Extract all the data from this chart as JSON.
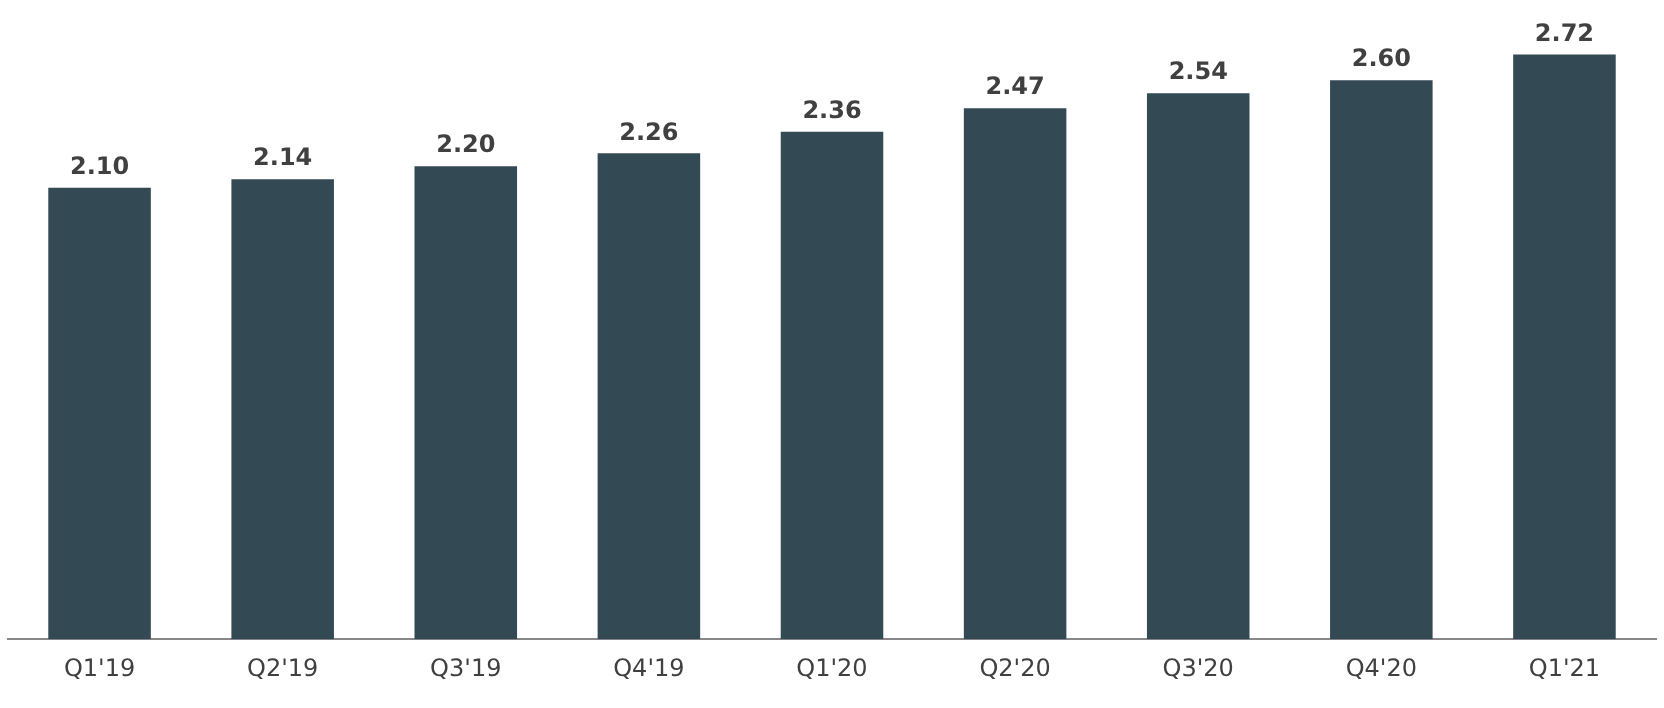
{
  "chart_data": {
    "type": "bar",
    "categories": [
      "Q1'19",
      "Q2'19",
      "Q3'19",
      "Q4'19",
      "Q1'20",
      "Q2'20",
      "Q3'20",
      "Q4'20",
      "Q1'21"
    ],
    "values": [
      2.1,
      2.14,
      2.2,
      2.26,
      2.36,
      2.47,
      2.54,
      2.6,
      2.72
    ],
    "value_labels": [
      "2.10",
      "2.14",
      "2.20",
      "2.26",
      "2.36",
      "2.47",
      "2.54",
      "2.60",
      "2.72"
    ],
    "color": "#334a55",
    "ylim": [
      0,
      2.75
    ],
    "tick_labels": "x",
    "grid": false,
    "legend": false
  }
}
